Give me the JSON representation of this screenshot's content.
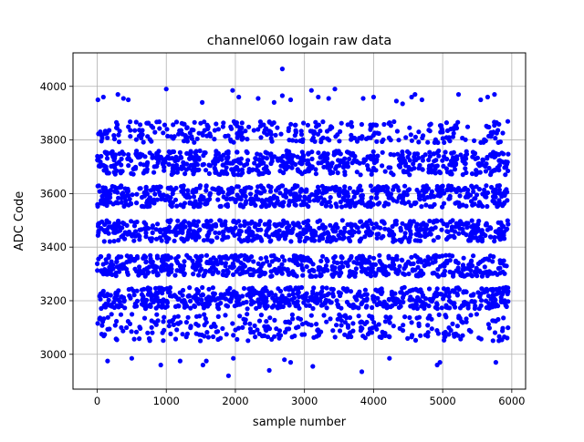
{
  "chart_data": {
    "type": "scatter",
    "title": "channel060 logain raw data",
    "xlabel": "sample number",
    "ylabel": "ADC Code",
    "xlim": [
      -350,
      6200
    ],
    "ylim": [
      2870,
      4125
    ],
    "x_ticks": [
      0,
      1000,
      2000,
      3000,
      4000,
      5000,
      6000
    ],
    "x_tick_labels": [
      "0",
      "1000",
      "2000",
      "3000",
      "4000",
      "5000",
      "6000"
    ],
    "y_ticks": [
      3000,
      3200,
      3400,
      3600,
      3800,
      4000
    ],
    "y_tick_labels": [
      "3000",
      "3200",
      "3400",
      "3600",
      "3800",
      "4000"
    ],
    "grid": true,
    "marker_color": "#0000ff",
    "n_samples": 5950,
    "level_bands": [
      {
        "center": 3100,
        "spread": 50,
        "density": "sparse"
      },
      {
        "center": 3210,
        "spread": 40,
        "density": "dense"
      },
      {
        "center": 3330,
        "spread": 40,
        "density": "dense"
      },
      {
        "center": 3460,
        "spread": 40,
        "density": "dense"
      },
      {
        "center": 3590,
        "spread": 40,
        "density": "dense"
      },
      {
        "center": 3715,
        "spread": 45,
        "density": "dense"
      },
      {
        "center": 3830,
        "spread": 40,
        "density": "sparse"
      }
    ],
    "outliers": [
      {
        "x": 10,
        "y": 3950
      },
      {
        "x": 90,
        "y": 3960
      },
      {
        "x": 300,
        "y": 3970
      },
      {
        "x": 380,
        "y": 3955
      },
      {
        "x": 450,
        "y": 3950
      },
      {
        "x": 1000,
        "y": 3990
      },
      {
        "x": 1520,
        "y": 3940
      },
      {
        "x": 1960,
        "y": 3985
      },
      {
        "x": 2050,
        "y": 3960
      },
      {
        "x": 2330,
        "y": 3955
      },
      {
        "x": 2560,
        "y": 3940
      },
      {
        "x": 2680,
        "y": 4065
      },
      {
        "x": 2680,
        "y": 3965
      },
      {
        "x": 2800,
        "y": 3950
      },
      {
        "x": 3100,
        "y": 3985
      },
      {
        "x": 3200,
        "y": 3960
      },
      {
        "x": 3350,
        "y": 3955
      },
      {
        "x": 3440,
        "y": 3990
      },
      {
        "x": 3850,
        "y": 3955
      },
      {
        "x": 4000,
        "y": 3960
      },
      {
        "x": 4330,
        "y": 3945
      },
      {
        "x": 4420,
        "y": 3935
      },
      {
        "x": 4550,
        "y": 3960
      },
      {
        "x": 4600,
        "y": 3970
      },
      {
        "x": 4700,
        "y": 3950
      },
      {
        "x": 5230,
        "y": 3970
      },
      {
        "x": 5550,
        "y": 3950
      },
      {
        "x": 5650,
        "y": 3960
      },
      {
        "x": 5750,
        "y": 3970
      },
      {
        "x": 150,
        "y": 2975
      },
      {
        "x": 500,
        "y": 2985
      },
      {
        "x": 920,
        "y": 2960
      },
      {
        "x": 1200,
        "y": 2975
      },
      {
        "x": 1530,
        "y": 2960
      },
      {
        "x": 1580,
        "y": 2975
      },
      {
        "x": 1900,
        "y": 2920
      },
      {
        "x": 1970,
        "y": 2985
      },
      {
        "x": 2490,
        "y": 2940
      },
      {
        "x": 2710,
        "y": 2980
      },
      {
        "x": 2800,
        "y": 2970
      },
      {
        "x": 3120,
        "y": 2955
      },
      {
        "x": 3830,
        "y": 2935
      },
      {
        "x": 4230,
        "y": 2985
      },
      {
        "x": 4920,
        "y": 2960
      },
      {
        "x": 4960,
        "y": 2970
      },
      {
        "x": 5770,
        "y": 2970
      }
    ]
  }
}
